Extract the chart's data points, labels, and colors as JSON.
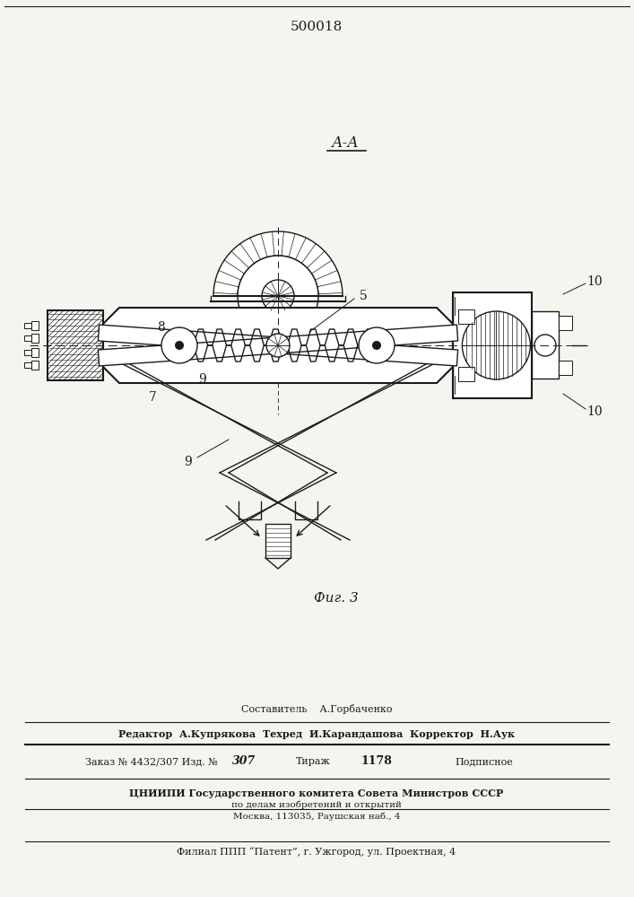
{
  "patent_number": "500018",
  "fig_label": "Фиг. 3",
  "section_label": "А-А",
  "bg_color": "#f5f5f0",
  "line_color": "#1a1a1a",
  "page_width": 7.07,
  "page_height": 10.0,
  "bottom_texts": {
    "sostavitel": "Составитель    А.Горбаченко",
    "redaktor": "Редактор  А.Купрякова  Техред  И.Карандашова  Корректор  Н.Аук",
    "zakaz": "Заказ № 4432/307 Изд. №",
    "zakaz_num": "307",
    "tirazh_label": "Тираж",
    "tirazh_num": "1178",
    "podpisnoe": "Подписное",
    "cniip1": "ЦНИИПИ Государственного комитета Совета Министров СССР",
    "cniip2": "по делам изобретений и открытий",
    "cniip3": "Москва, 113035, Раушская наб., 4",
    "filial": "Филиал ППП “Патент”, г. Ужгород, ул. Проектная, 4"
  }
}
